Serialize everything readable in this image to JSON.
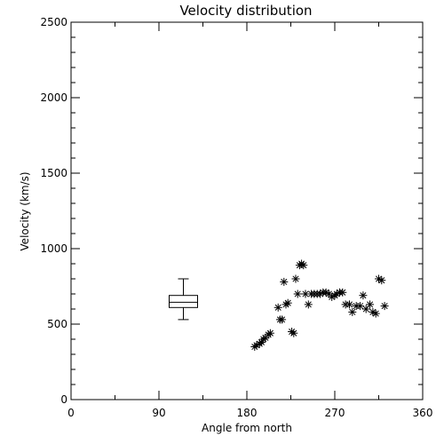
{
  "chart_data": {
    "type": "scatter",
    "title": "Velocity distribution",
    "xlabel": "Angle from north",
    "ylabel": "Velocity (km/s)",
    "xlim": [
      0,
      360
    ],
    "ylim": [
      0,
      2500
    ],
    "xticks": [
      0,
      90,
      180,
      270,
      360
    ],
    "yticks": [
      0,
      500,
      1000,
      1500,
      2000,
      2500
    ],
    "marker": "asterisk",
    "grid": false,
    "series": [
      {
        "x": [
          188,
          190,
          193,
          195,
          197,
          199,
          202,
          204,
          212,
          214,
          216,
          218,
          220,
          222,
          226,
          228,
          230,
          232,
          234,
          236,
          238,
          240,
          243,
          246,
          249,
          252,
          255,
          258,
          261,
          264,
          267,
          270,
          272,
          275,
          278,
          281,
          285,
          288,
          292,
          296,
          299,
          302,
          306,
          309,
          312,
          315,
          318,
          321
        ],
        "y": [
          350,
          360,
          370,
          380,
          400,
          410,
          430,
          440,
          610,
          530,
          530,
          780,
          630,
          640,
          450,
          440,
          800,
          700,
          890,
          900,
          890,
          700,
          630,
          700,
          700,
          700,
          700,
          710,
          710,
          700,
          680,
          690,
          700,
          710,
          710,
          630,
          630,
          580,
          620,
          620,
          690,
          600,
          630,
          580,
          570,
          800,
          790,
          620
        ]
      }
    ],
    "boxplot": {
      "x": 115,
      "min": 530,
      "q1": 610,
      "median": 645,
      "q3": 690,
      "max": 800
    }
  }
}
